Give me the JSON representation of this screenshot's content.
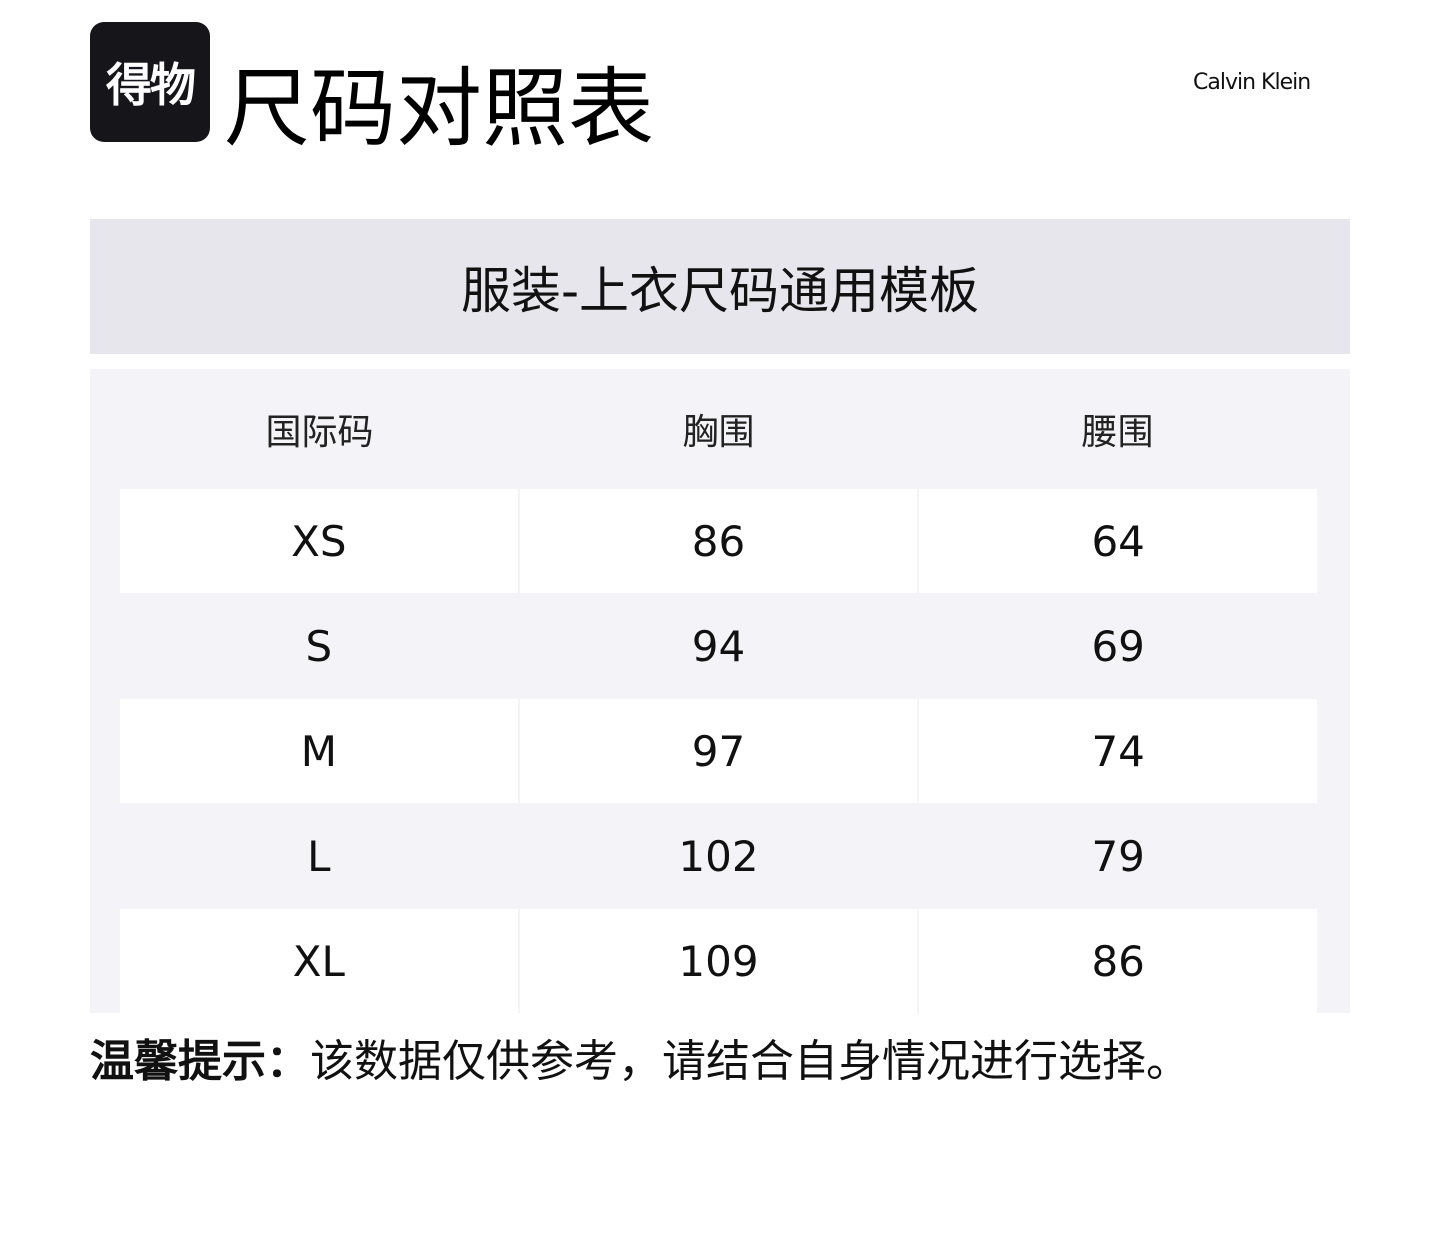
{
  "logo": {
    "text": "得物"
  },
  "header": {
    "title": "尺码对照表",
    "brand": "Calvin Klein"
  },
  "banner": {
    "title": "服装-上衣尺码通用模板"
  },
  "table": {
    "columns": [
      "国际码",
      "胸围",
      "腰围"
    ],
    "rows": [
      [
        "XS",
        "86",
        "64"
      ],
      [
        "S",
        "94",
        "69"
      ],
      [
        "M",
        "97",
        "74"
      ],
      [
        "L",
        "102",
        "79"
      ],
      [
        "XL",
        "109",
        "86"
      ]
    ]
  },
  "tip": {
    "label": "温馨提示：",
    "text": "该数据仅供参考，请结合自身情况进行选择。"
  }
}
